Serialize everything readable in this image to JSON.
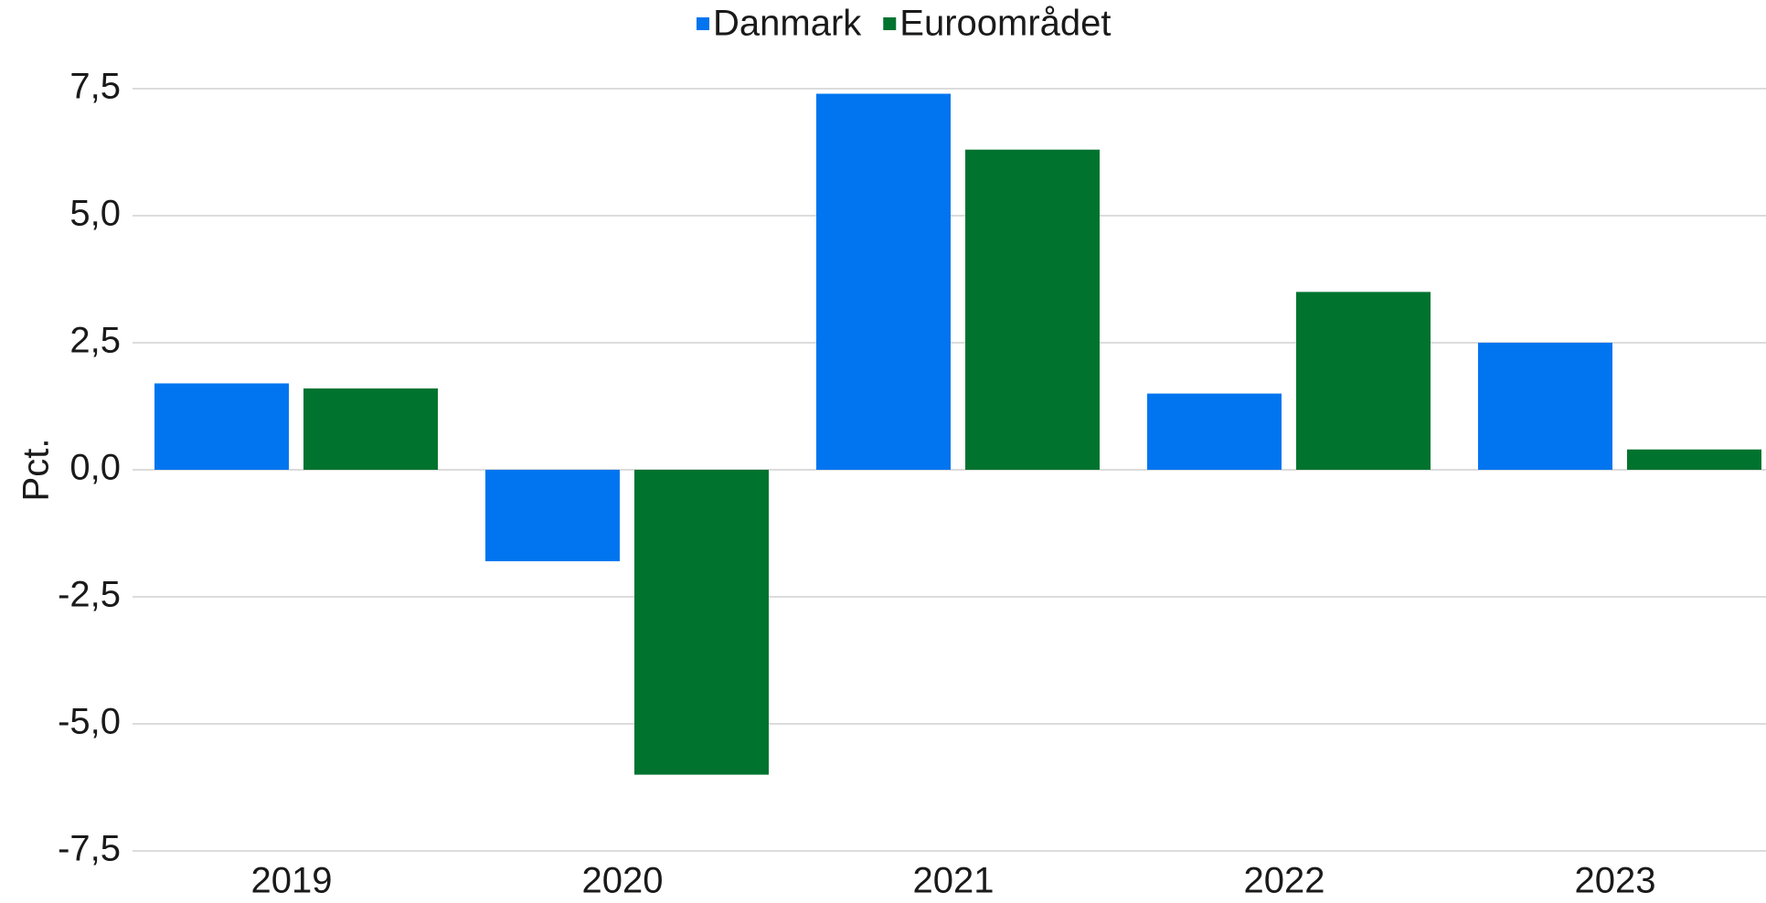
{
  "chart_data": {
    "type": "bar",
    "y_label": "Pct.",
    "categories": [
      "2019",
      "2020",
      "2021",
      "2022",
      "2023"
    ],
    "series": [
      {
        "name": "Danmark",
        "color": "#0075ef",
        "values": [
          1.7,
          -1.8,
          7.4,
          1.5,
          2.5
        ]
      },
      {
        "name": "Euroområdet",
        "color": "#00732f",
        "values": [
          1.6,
          -6.0,
          6.3,
          3.5,
          0.4
        ]
      }
    ],
    "ylim": [
      -7.5,
      7.5
    ],
    "yticks": [
      {
        "value": -7.5,
        "label": "-7,5"
      },
      {
        "value": -5,
        "label": "-5,0"
      },
      {
        "value": -2.5,
        "label": "-2,5"
      },
      {
        "value": 0,
        "label": "0,0"
      },
      {
        "value": 2.5,
        "label": "2,5"
      },
      {
        "value": 5,
        "label": "5,0"
      },
      {
        "value": 7.5,
        "label": "7,5"
      }
    ],
    "grid": true,
    "legend": "top"
  }
}
